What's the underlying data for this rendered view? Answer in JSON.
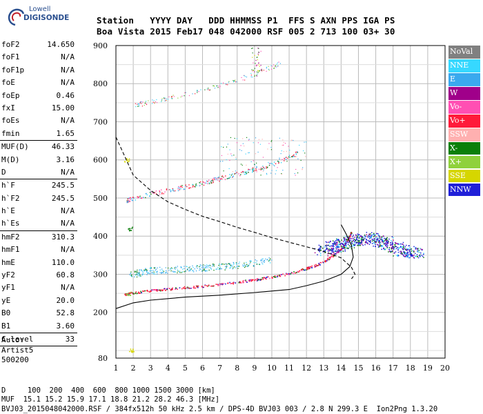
{
  "logo": {
    "line1": "Lowell",
    "line2": "DIGISONDE",
    "icon": "digisonde-swirl-icon"
  },
  "header": {
    "line1": "Station   YYYY DAY   DDD HHMMSS P1  FFS S AXN PPS IGA PS",
    "line2": "Boa Vista 2015 Feb17 048 042000 RSF 005 2 713 100 03+ 30"
  },
  "params": {
    "group1": [
      {
        "k": "foF2",
        "v": "14.650"
      },
      {
        "k": "foF1",
        "v": "N/A"
      },
      {
        "k": "foF1p",
        "v": "N/A"
      },
      {
        "k": "foE",
        "v": "N/A"
      },
      {
        "k": "foEp",
        "v": "0.46"
      },
      {
        "k": "fxI",
        "v": "15.00"
      },
      {
        "k": "foEs",
        "v": "N/A"
      },
      {
        "k": "fmin",
        "v": "1.65"
      }
    ],
    "group2": [
      {
        "k": "MUF(D)",
        "v": "46.33"
      },
      {
        "k": "M(D)",
        "v": "3.16"
      },
      {
        "k": "D",
        "v": "N/A"
      }
    ],
    "group3": [
      {
        "k": "h`F",
        "v": "245.5"
      },
      {
        "k": "h`F2",
        "v": "245.5"
      },
      {
        "k": "h`E",
        "v": "N/A"
      },
      {
        "k": "h`Es",
        "v": "N/A"
      }
    ],
    "group4": [
      {
        "k": "hmF2",
        "v": "310.3"
      },
      {
        "k": "hmF1",
        "v": "N/A"
      },
      {
        "k": "hmE",
        "v": "110.0"
      },
      {
        "k": "yF2",
        "v": "60.8"
      },
      {
        "k": "yF1",
        "v": "N/A"
      },
      {
        "k": "yE",
        "v": "20.0"
      },
      {
        "k": "B0",
        "v": "52.8"
      },
      {
        "k": "B1",
        "v": "3.60"
      }
    ],
    "group5": [
      {
        "k": "C-level",
        "v": "33"
      }
    ]
  },
  "auto": {
    "line1": "Auto:",
    "line2": "Artist5",
    "line3": "500200"
  },
  "legend": [
    {
      "label": "NoVal",
      "color": "#808080"
    },
    {
      "label": "NNE",
      "color": "#36d8ff"
    },
    {
      "label": "E",
      "color": "#3aa9ee"
    },
    {
      "label": "W",
      "color": "#a0008a"
    },
    {
      "label": "Vo-",
      "color": "#ff4fb3"
    },
    {
      "label": "Vo+",
      "color": "#ff1a3a"
    },
    {
      "label": "SSW",
      "color": "#ffb0b0"
    },
    {
      "label": "X-",
      "color": "#0a7f0a"
    },
    {
      "label": "X+",
      "color": "#8fd13c"
    },
    {
      "label": "SSE",
      "color": "#d6d600"
    },
    {
      "label": "NNW",
      "color": "#2020d8"
    }
  ],
  "bottom": {
    "line1": "D     100  200  400  600  800 1000 1500 3000 [km]",
    "line2": "MUF  15.1 15.2 15.9 17.1 18.8 21.2 28.2 46.3 [MHz]",
    "line3": "BVJ03_2015048042000.RSF / 384fx512h 50 kHz 2.5 km / DPS-4D BVJ03 003 / 2.8 N 299.3 E  Ion2Png 1.3.20"
  },
  "chart_data": {
    "type": "scatter",
    "title": "",
    "xlabel": "",
    "ylabel": "",
    "xlim": [
      1,
      20
    ],
    "ylim": [
      80,
      900
    ],
    "xticks": [
      1,
      2,
      3,
      4,
      5,
      6,
      7,
      8,
      9,
      10,
      11,
      12,
      13,
      14,
      15,
      16,
      17,
      18,
      19,
      20
    ],
    "yticks": [
      80,
      200,
      300,
      400,
      500,
      600,
      700,
      800,
      900
    ],
    "grid": true,
    "legend_position": "right",
    "traces": [
      {
        "series": "Vo+",
        "x": [
          1.5,
          2,
          3,
          4,
          5,
          6,
          7,
          8,
          9,
          10,
          11,
          12,
          12.5,
          13,
          13.5,
          14,
          14.3,
          14.6
        ],
        "y": [
          248,
          252,
          258,
          262,
          266,
          270,
          275,
          280,
          286,
          294,
          303,
          316,
          324,
          334,
          350,
          368,
          385,
          412
        ]
      },
      {
        "series": "Vo+ 2nd hop",
        "x": [
          1.6,
          2,
          3,
          4,
          5,
          6,
          7,
          8,
          9,
          10,
          11,
          11.5
        ],
        "y": [
          493,
          500,
          512,
          520,
          530,
          540,
          552,
          563,
          576,
          590,
          608,
          620
        ]
      },
      {
        "series": "Vo+ 3rd hop",
        "x": [
          2,
          3,
          4,
          5,
          6,
          7,
          8,
          9,
          10,
          10.5
        ],
        "y": [
          745,
          752,
          762,
          773,
          784,
          796,
          810,
          826,
          844,
          855
        ]
      },
      {
        "series": "E echoes",
        "x": [
          1.8,
          2.5,
          3,
          4,
          5,
          6,
          7,
          8,
          9,
          10
        ],
        "y": [
          300,
          305,
          310,
          312,
          315,
          318,
          320,
          325,
          330,
          340
        ]
      },
      {
        "series": "NNW spread",
        "x": [
          12.8,
          13.5,
          14,
          14.5,
          15,
          15.5,
          16,
          16.5,
          17,
          17.5,
          18,
          18.3
        ],
        "y": [
          360,
          372,
          378,
          385,
          392,
          398,
          392,
          385,
          372,
          362,
          358,
          356
        ]
      }
    ],
    "profile_solid": {
      "x": [
        1,
        2,
        3,
        5,
        7,
        9,
        11,
        12,
        13,
        14,
        14.5,
        14.7,
        14.6,
        14.3,
        14
      ],
      "y": [
        210,
        225,
        232,
        240,
        245,
        252,
        260,
        270,
        282,
        300,
        320,
        345,
        375,
        405,
        430
      ]
    },
    "profile_dashed": {
      "x": [
        1,
        1.5,
        2,
        3,
        4,
        5,
        6,
        7,
        8,
        9,
        10,
        11,
        12,
        13,
        14,
        14.6,
        14.8,
        14.6
      ],
      "y": [
        660,
        610,
        560,
        520,
        490,
        470,
        452,
        438,
        423,
        410,
        396,
        384,
        372,
        360,
        343,
        318,
        300,
        288
      ]
    },
    "annotations": [
      {
        "x": 1.6,
        "y": 600,
        "series": "SSE"
      },
      {
        "x": 1.8,
        "y": 420,
        "series": "X-"
      },
      {
        "x": 1.7,
        "y": 250,
        "series": "X+"
      },
      {
        "x": 1.9,
        "y": 100,
        "series": "SSE"
      }
    ]
  }
}
